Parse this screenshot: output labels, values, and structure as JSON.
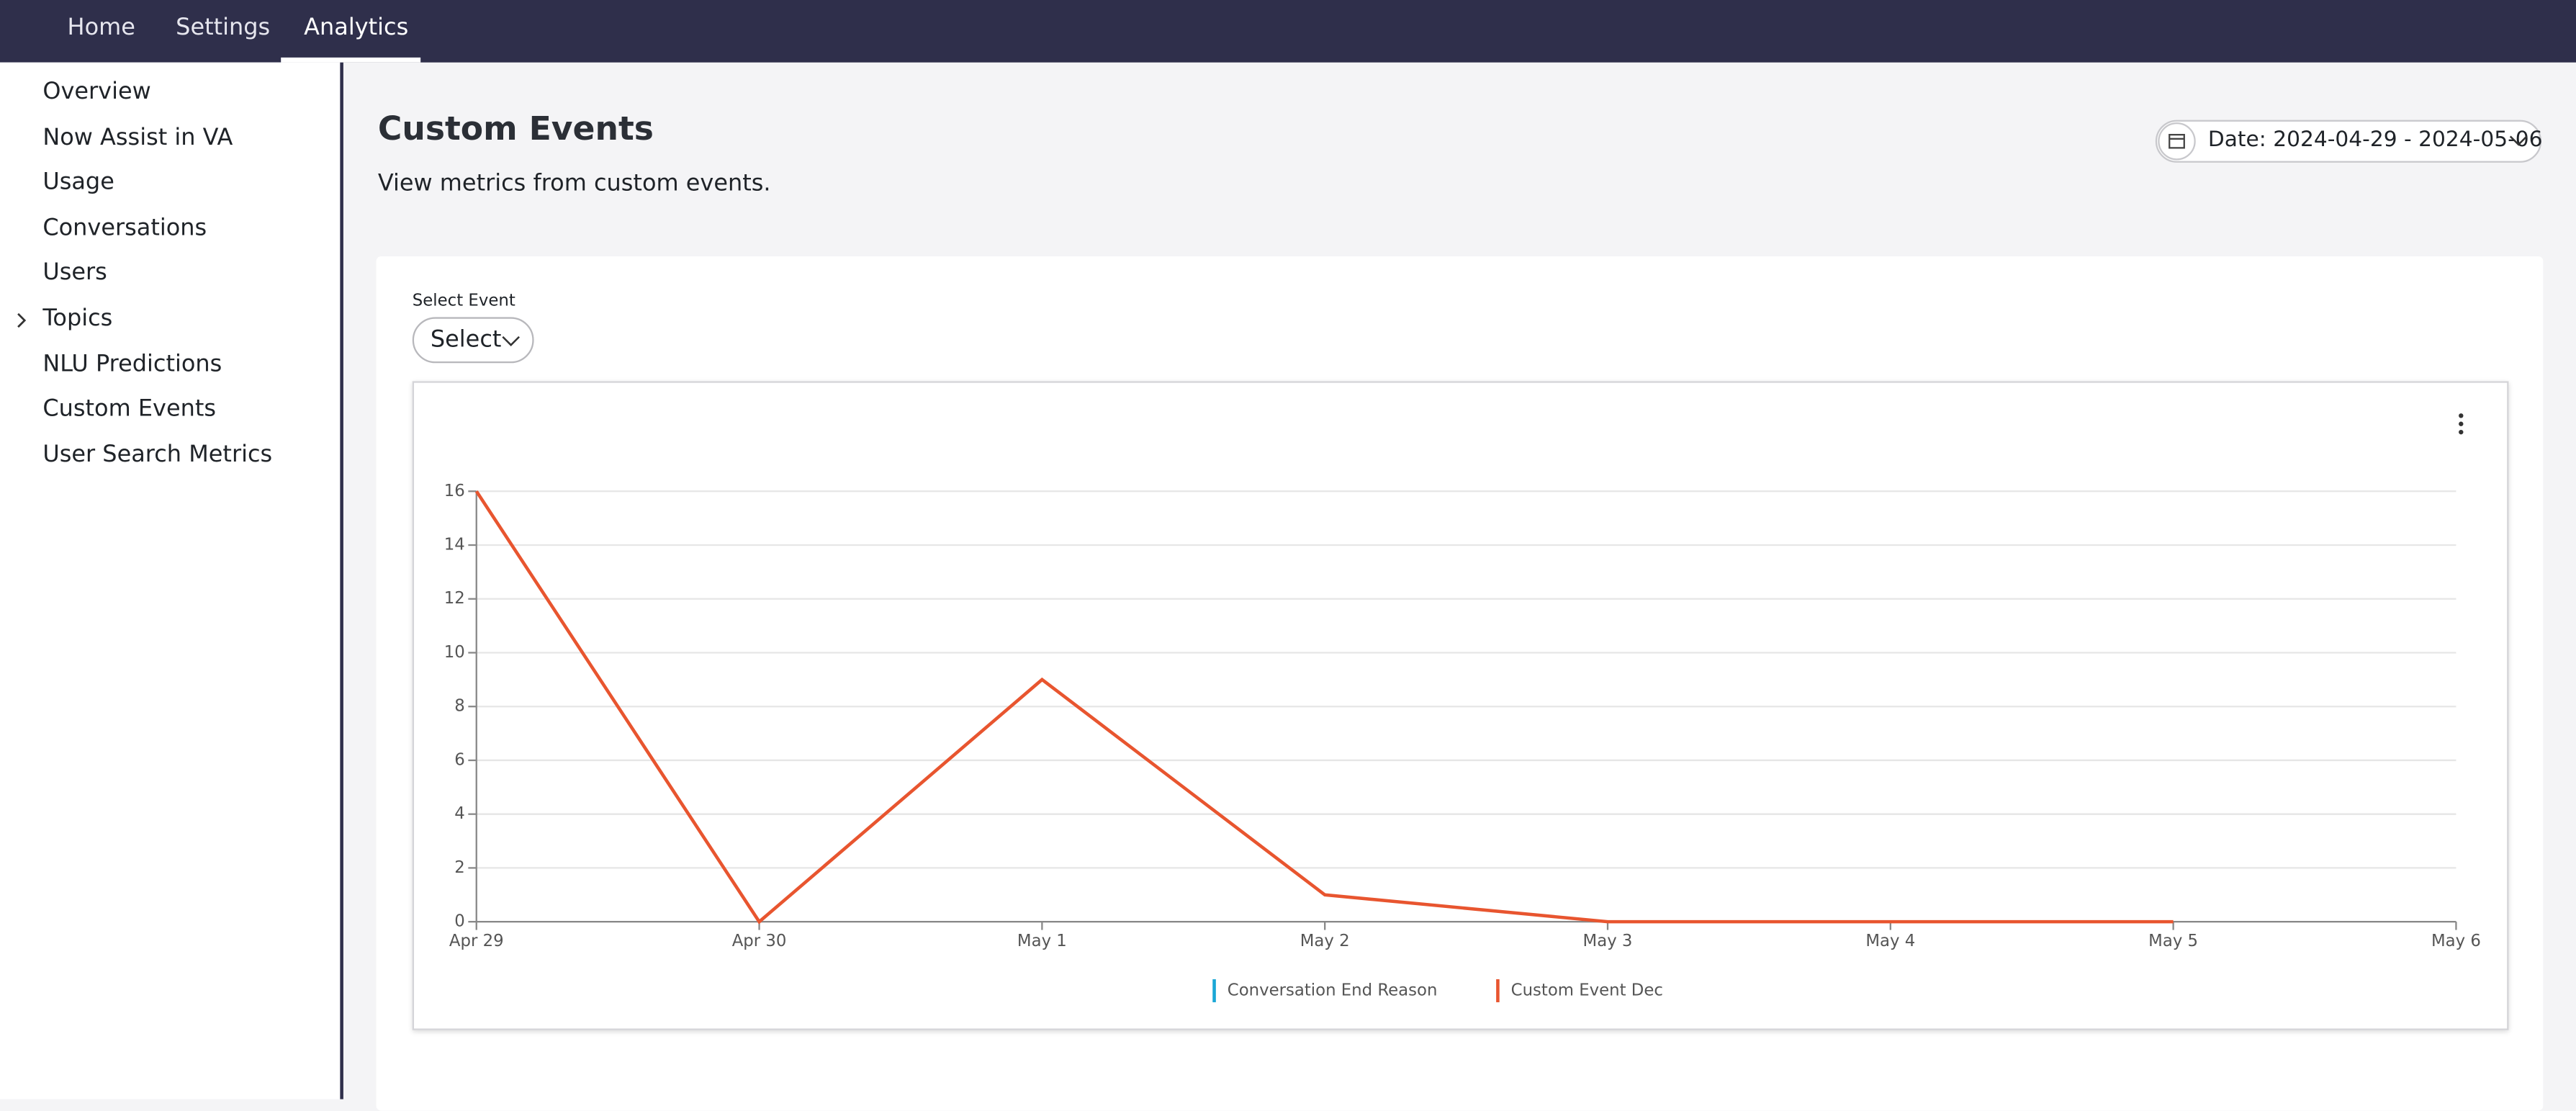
{
  "nav": {
    "tabs": [
      "Home",
      "Settings",
      "Analytics"
    ]
  },
  "sidebar": {
    "items": [
      "Overview",
      "Now Assist in VA",
      "Usage",
      "Conversations",
      "Users",
      "Topics",
      "NLU Predictions",
      "Custom Events",
      "User Search Metrics"
    ]
  },
  "header": {
    "title": "Custom Events",
    "subtitle": "View metrics from custom events.",
    "date_button": "Date: 2024-04-29 - 2024-05-06"
  },
  "filter": {
    "label": "Select Event",
    "select": "Select"
  },
  "chart_data": {
    "type": "line",
    "categories": [
      "Apr 29",
      "Apr 30",
      "May 1",
      "May 2",
      "May 3",
      "May 4",
      "May 5",
      "May 6"
    ],
    "series": [
      {
        "name": "Conversation End Reason",
        "color": "#1aa7d6",
        "values": [
          null,
          null,
          null,
          null,
          null,
          null,
          null,
          null
        ]
      },
      {
        "name": "Custom Event Dec",
        "color": "#e8552f",
        "values": [
          16,
          0,
          9,
          1,
          0,
          0,
          0,
          null
        ]
      }
    ],
    "ylim": [
      0,
      16
    ],
    "yticks": [
      0,
      2,
      4,
      6,
      8,
      10,
      12,
      14,
      16
    ],
    "grid": true,
    "legend": "bottom"
  }
}
